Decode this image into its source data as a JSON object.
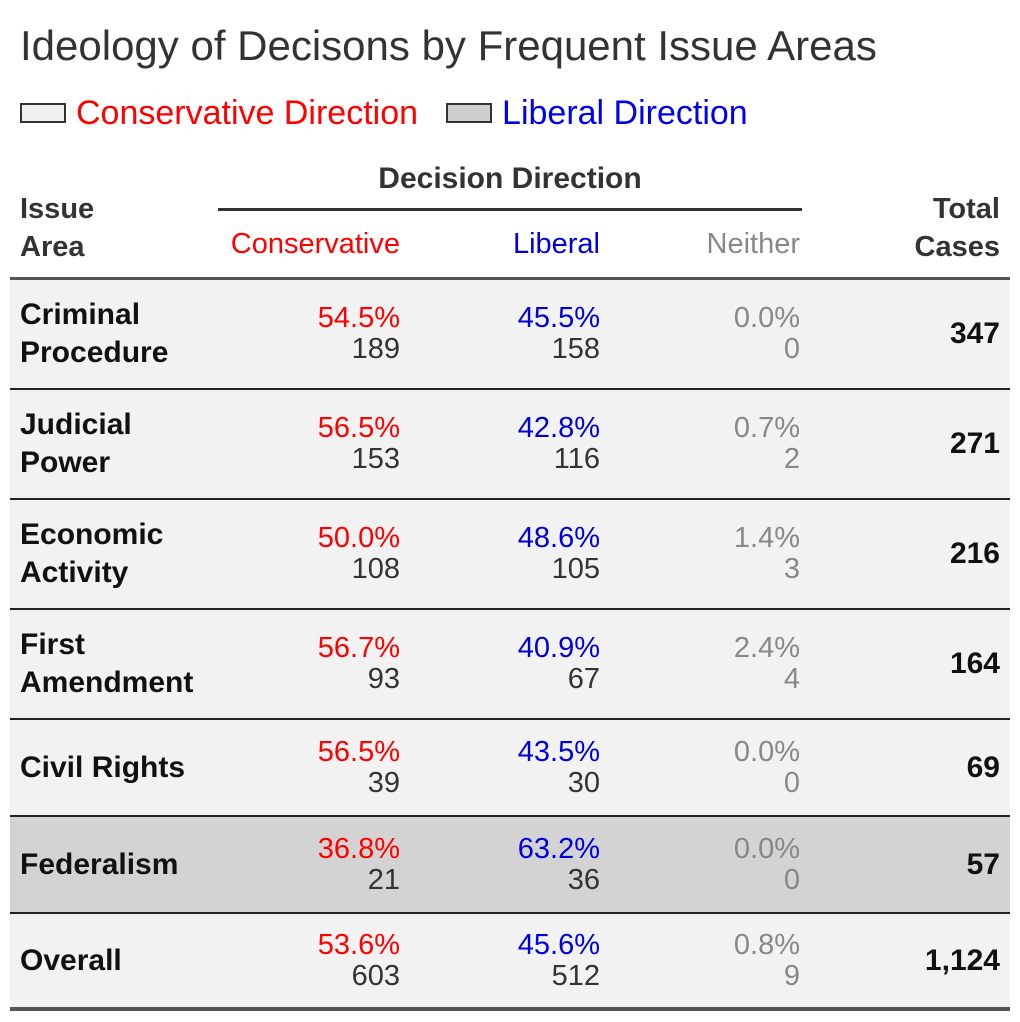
{
  "chart_data": {
    "type": "table",
    "title": "Ideology of Decisons by Frequent Issue Areas",
    "legend": [
      {
        "label": "Conservative Direction",
        "swatch": "#f0f0f0",
        "text_color": "#ff0000"
      },
      {
        "label": "Liberal Direction",
        "swatch": "#cfcfcf",
        "text_color": "#0000ee"
      }
    ],
    "header": {
      "issue_area_line1": "Issue",
      "issue_area_line2": "Area",
      "group_label": "Decision Direction",
      "conservative": "Conservative",
      "liberal": "Liberal",
      "neither": "Neither",
      "total_line1": "Total",
      "total_line2": "Cases"
    },
    "colors": {
      "conservative": "#ff0000",
      "liberal": "#0000dd",
      "neither": "#888888",
      "row_conservative_bg": "#f2f2f2",
      "row_liberal_bg": "#d3d3d3"
    },
    "rows": [
      {
        "label_line1": "Criminal",
        "label_line2": "Procedure",
        "direction": "conservative",
        "conservative_pct": "54.5%",
        "conservative_n": "189",
        "liberal_pct": "45.5%",
        "liberal_n": "158",
        "neither_pct": "0.0%",
        "neither_n": "0",
        "total": "347"
      },
      {
        "label_line1": "Judicial",
        "label_line2": "Power",
        "direction": "conservative",
        "conservative_pct": "56.5%",
        "conservative_n": "153",
        "liberal_pct": "42.8%",
        "liberal_n": "116",
        "neither_pct": "0.7%",
        "neither_n": "2",
        "total": "271"
      },
      {
        "label_line1": "Economic",
        "label_line2": "Activity",
        "direction": "conservative",
        "conservative_pct": "50.0%",
        "conservative_n": "108",
        "liberal_pct": "48.6%",
        "liberal_n": "105",
        "neither_pct": "1.4%",
        "neither_n": "3",
        "total": "216"
      },
      {
        "label_line1": "First",
        "label_line2": "Amendment",
        "direction": "conservative",
        "conservative_pct": "56.7%",
        "conservative_n": "93",
        "liberal_pct": "40.9%",
        "liberal_n": "67",
        "neither_pct": "2.4%",
        "neither_n": "4",
        "total": "164"
      },
      {
        "label_line1": "Civil Rights",
        "label_line2": "",
        "direction": "conservative",
        "conservative_pct": "56.5%",
        "conservative_n": "39",
        "liberal_pct": "43.5%",
        "liberal_n": "30",
        "neither_pct": "0.0%",
        "neither_n": "0",
        "total": "69"
      },
      {
        "label_line1": "Federalism",
        "label_line2": "",
        "direction": "liberal",
        "conservative_pct": "36.8%",
        "conservative_n": "21",
        "liberal_pct": "63.2%",
        "liberal_n": "36",
        "neither_pct": "0.0%",
        "neither_n": "0",
        "total": "57"
      },
      {
        "label_line1": "Overall",
        "label_line2": "",
        "direction": "conservative",
        "conservative_pct": "53.6%",
        "conservative_n": "603",
        "liberal_pct": "45.6%",
        "liberal_n": "512",
        "neither_pct": "0.8%",
        "neither_n": "9",
        "total": "1,124"
      }
    ]
  }
}
